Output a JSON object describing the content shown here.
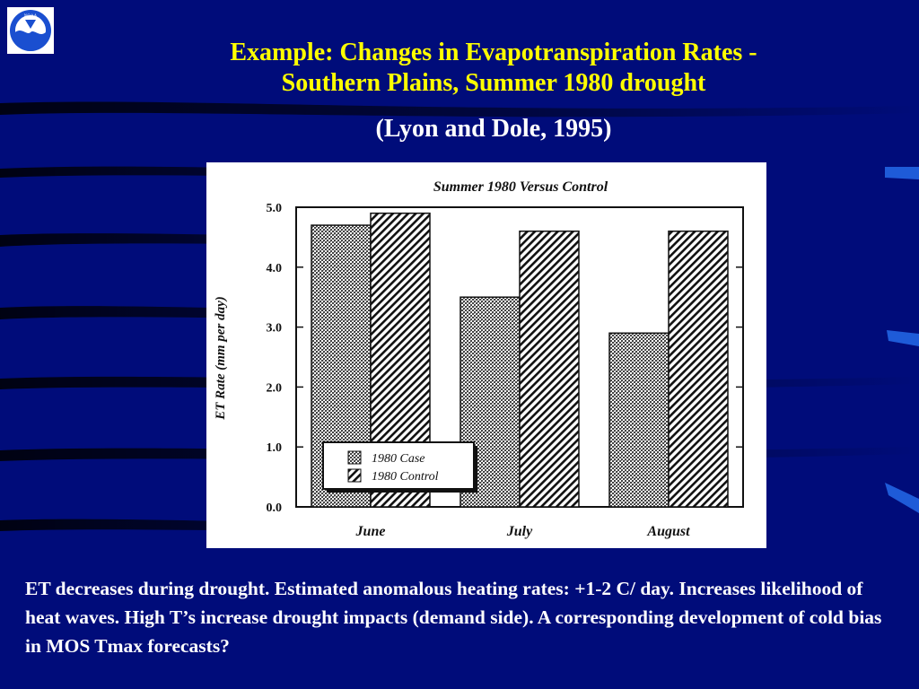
{
  "slide": {
    "title_line1": "Example: Changes in Evapotranspiration Rates -",
    "title_line2": "Southern Plains, Summer 1980 drought",
    "citation": "(Lyon and Dole, 1995)",
    "caption": "ET decreases during drought. Estimated anomalous heating rates: +1-2 C/ day. Increases likelihood of heat waves. High T’s increase drought impacts (demand side). A corresponding development of cold bias in MOS Tmax forecasts?",
    "logo_text": "NOAA",
    "colors": {
      "background": "#000c7a",
      "title": "#ffff00",
      "text": "#ffffff"
    }
  },
  "chart_data": {
    "type": "bar",
    "title": "Summer 1980 Versus Control",
    "xlabel": "",
    "ylabel": "ET Rate (mm per day)",
    "categories": [
      "June",
      "July",
      "August"
    ],
    "series": [
      {
        "name": "1980 Case",
        "values": [
          4.7,
          3.5,
          2.9
        ]
      },
      {
        "name": "1980 Control",
        "values": [
          4.9,
          4.6,
          4.6
        ]
      }
    ],
    "ylim": [
      0,
      5
    ],
    "yticks": [
      "0.0",
      "1.0",
      "2.0",
      "3.0",
      "4.0",
      "5.0"
    ],
    "legend": "bottom-left",
    "grid": false
  }
}
